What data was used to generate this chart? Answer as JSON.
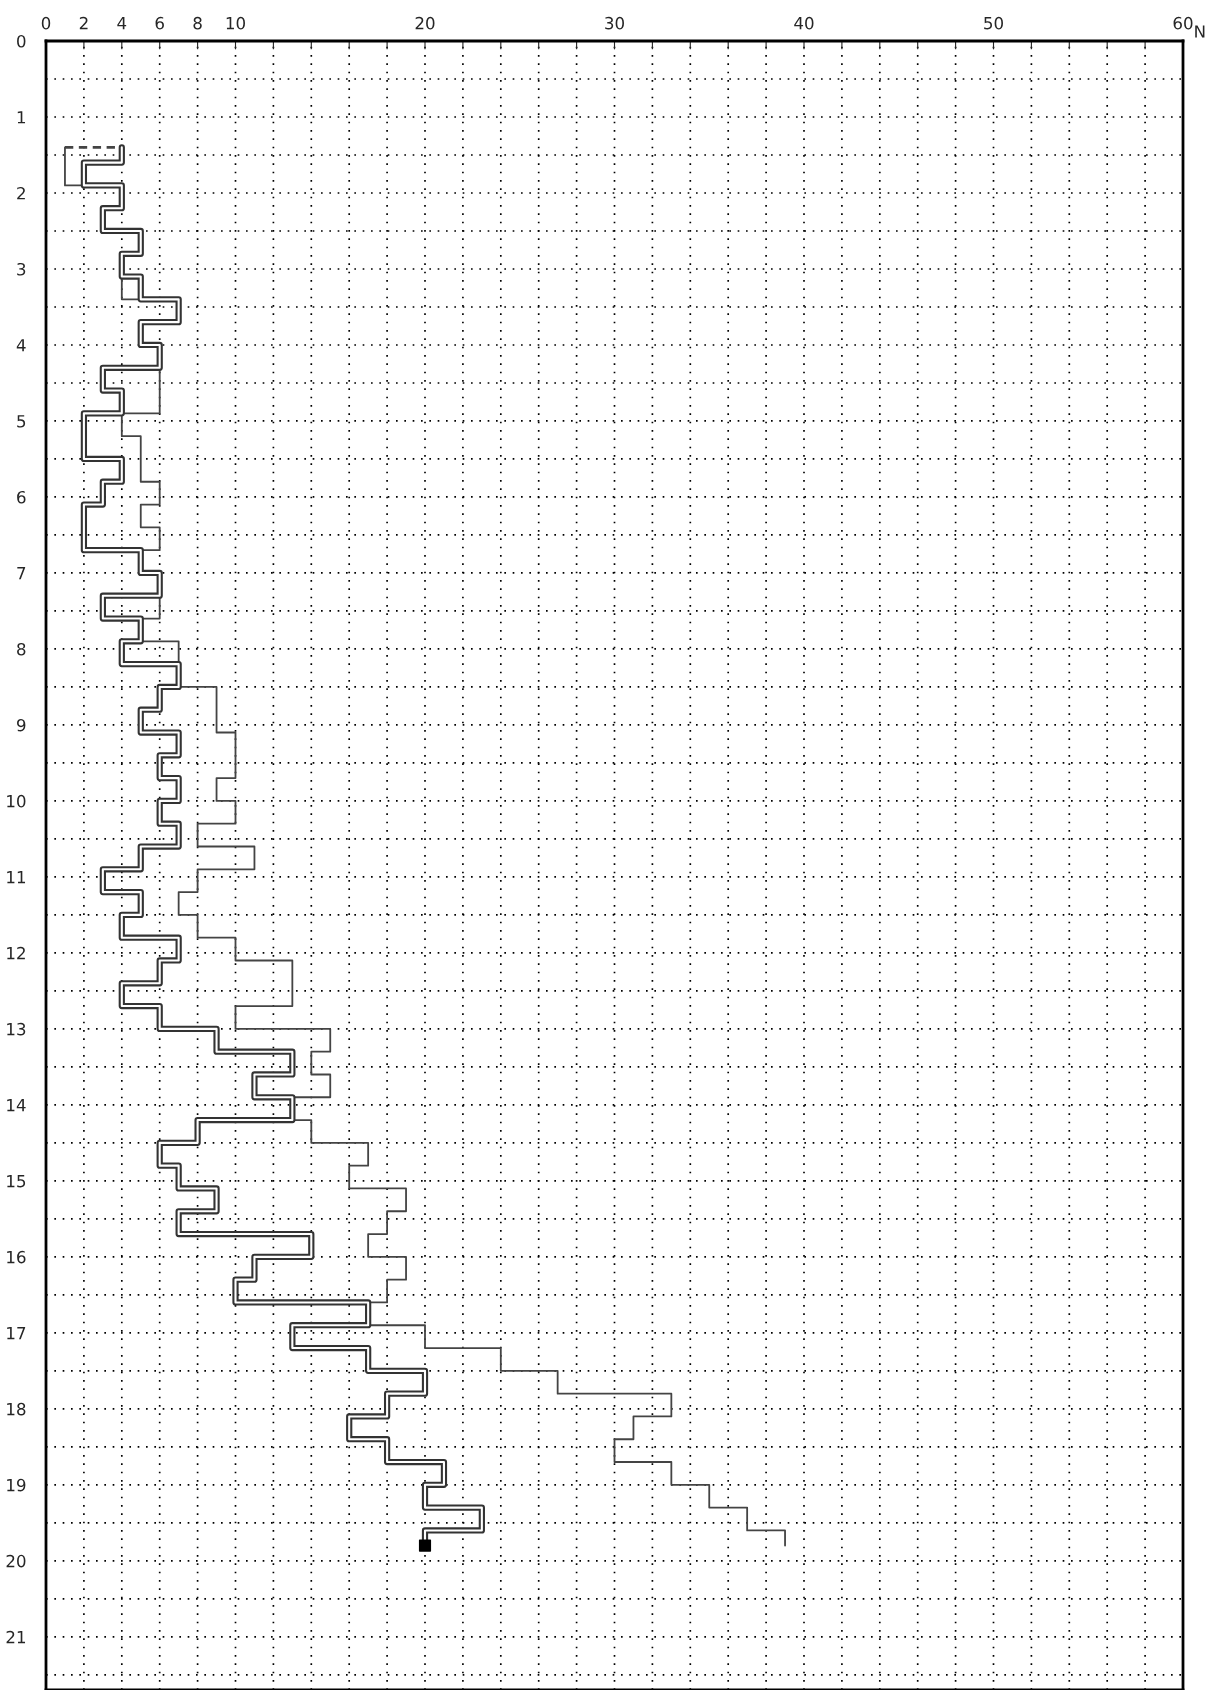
{
  "chart_data": {
    "type": "step",
    "orientation": "horizontal",
    "xlabel": "N",
    "xlim": [
      0,
      60
    ],
    "xticks": [
      0,
      2,
      4,
      6,
      8,
      10,
      {
        "value": 12,
        "label": null
      },
      {
        "value": 14,
        "label": null
      },
      {
        "value": 16,
        "label": null
      },
      {
        "value": 18,
        "label": null
      },
      20,
      {
        "value": 22,
        "label": null
      },
      {
        "value": 24,
        "label": null
      },
      {
        "value": 26,
        "label": null
      },
      {
        "value": 28,
        "label": null
      },
      30,
      {
        "value": 32,
        "label": null
      },
      {
        "value": 34,
        "label": null
      },
      {
        "value": 36,
        "label": null
      },
      {
        "value": 38,
        "label": null
      },
      40,
      {
        "value": 42,
        "label": null
      },
      {
        "value": 44,
        "label": null
      },
      {
        "value": 46,
        "label": null
      },
      {
        "value": 48,
        "label": null
      },
      50,
      {
        "value": 52,
        "label": null
      },
      {
        "value": 54,
        "label": null
      },
      {
        "value": 56,
        "label": null
      },
      {
        "value": 58,
        "label": null
      },
      60
    ],
    "ylim": [
      21.7,
      0
    ],
    "yticks": [
      0,
      {
        "value": 0.5,
        "label": null
      },
      1,
      {
        "value": 1.5,
        "label": null
      },
      2,
      {
        "value": 2.5,
        "label": null
      },
      3,
      {
        "value": 3.5,
        "label": null
      },
      4,
      {
        "value": 4.5,
        "label": null
      },
      5,
      {
        "value": 5.5,
        "label": null
      },
      6,
      {
        "value": 6.5,
        "label": null
      },
      7,
      {
        "value": 7.5,
        "label": null
      },
      8,
      {
        "value": 8.5,
        "label": null
      },
      9,
      {
        "value": 9.5,
        "label": null
      },
      10,
      {
        "value": 10.5,
        "label": null
      },
      11,
      {
        "value": 11.5,
        "label": null
      },
      12,
      {
        "value": 12.5,
        "label": null
      },
      13,
      {
        "value": 13.5,
        "label": null
      },
      14,
      {
        "value": 14.5,
        "label": null
      },
      15,
      {
        "value": 15.5,
        "label": null
      },
      16,
      {
        "value": 16.5,
        "label": null
      },
      17,
      {
        "value": 17.5,
        "label": null
      },
      18,
      {
        "value": 18.5,
        "label": null
      },
      19,
      {
        "value": 19.5,
        "label": null
      },
      20,
      {
        "value": 20.5,
        "label": null
      },
      21,
      {
        "value": 21.5,
        "label": null
      }
    ],
    "grid": true,
    "legend": false,
    "series": [
      {
        "type": "step",
        "color": "#444444",
        "line_style": "solid",
        "x": [
          1.4,
          1.6,
          1.9,
          2.2,
          2.5,
          2.8,
          3.1,
          3.4,
          3.7,
          4.0,
          4.3,
          4.6,
          4.9,
          5.2,
          5.5,
          5.8,
          6.1,
          6.4,
          6.7,
          7.0,
          7.3,
          7.6,
          7.9,
          8.2,
          8.5,
          8.8,
          9.1,
          9.4,
          9.7,
          10.0,
          10.3,
          10.6,
          10.9,
          11.2,
          11.5,
          11.8,
          12.1,
          12.4,
          12.7,
          13.0,
          13.3,
          13.6,
          13.9,
          14.2,
          14.5,
          14.8,
          15.1,
          15.4,
          15.7,
          16.0,
          16.3,
          16.6,
          16.9,
          17.2,
          17.5,
          17.8,
          18.1,
          18.4,
          18.7,
          19.0,
          19.3,
          19.6,
          19.8
        ],
        "values": [
          1,
          1,
          4,
          3,
          5,
          4,
          4,
          7,
          5,
          6,
          6,
          6,
          4,
          5,
          5,
          6,
          5,
          6,
          5,
          6,
          6,
          5,
          7,
          7,
          9,
          9,
          10,
          10,
          9,
          10,
          8,
          11,
          8,
          7,
          8,
          10,
          13,
          13,
          10,
          15,
          14,
          15,
          13,
          14,
          17,
          16,
          19,
          18,
          17,
          19,
          18,
          17,
          20,
          24,
          27,
          33,
          31,
          30,
          33,
          35,
          37,
          39,
          39
        ]
      },
      {
        "type": "step",
        "color": "#333333",
        "line_style": "solid",
        "x": [
          1.4,
          1.6,
          1.9,
          2.2,
          2.5,
          2.8,
          3.1,
          3.4,
          3.7,
          4.0,
          4.3,
          4.6,
          4.9,
          5.2,
          5.5,
          5.8,
          6.1,
          6.4,
          6.7,
          7.0,
          7.3,
          7.6,
          7.9,
          8.2,
          8.5,
          8.8,
          9.1,
          9.4,
          9.7,
          10.0,
          10.3,
          10.6,
          10.9,
          11.2,
          11.5,
          11.8,
          12.1,
          12.4,
          12.7,
          13.0,
          13.3,
          13.6,
          13.9,
          14.2,
          14.5,
          14.8,
          15.1,
          15.4,
          15.7,
          16.0,
          16.3,
          16.6,
          16.9,
          17.2,
          17.5,
          17.8,
          18.1,
          18.4,
          18.7,
          19.0,
          19.3,
          19.6,
          19.8
        ],
        "values": [
          4,
          2,
          4,
          3,
          5,
          4,
          5,
          7,
          5,
          6,
          3,
          4,
          2,
          2,
          4,
          3,
          2,
          2,
          5,
          6,
          3,
          5,
          4,
          7,
          6,
          5,
          7,
          6,
          7,
          6,
          7,
          5,
          3,
          5,
          4,
          7,
          6,
          4,
          6,
          9,
          13,
          11,
          13,
          8,
          6,
          7,
          9,
          7,
          14,
          11,
          10,
          17,
          13,
          17,
          20,
          18,
          16,
          18,
          21,
          20,
          23,
          20,
          20
        ]
      },
      {
        "type": "line",
        "color": "#444444",
        "line_style": "dashed",
        "x": [
          1.4,
          1.4
        ],
        "values": [
          1,
          4
        ]
      },
      {
        "type": "scatter",
        "color": "#000000",
        "marker": "square",
        "x": [
          19.8
        ],
        "values": [
          20
        ]
      }
    ]
  }
}
